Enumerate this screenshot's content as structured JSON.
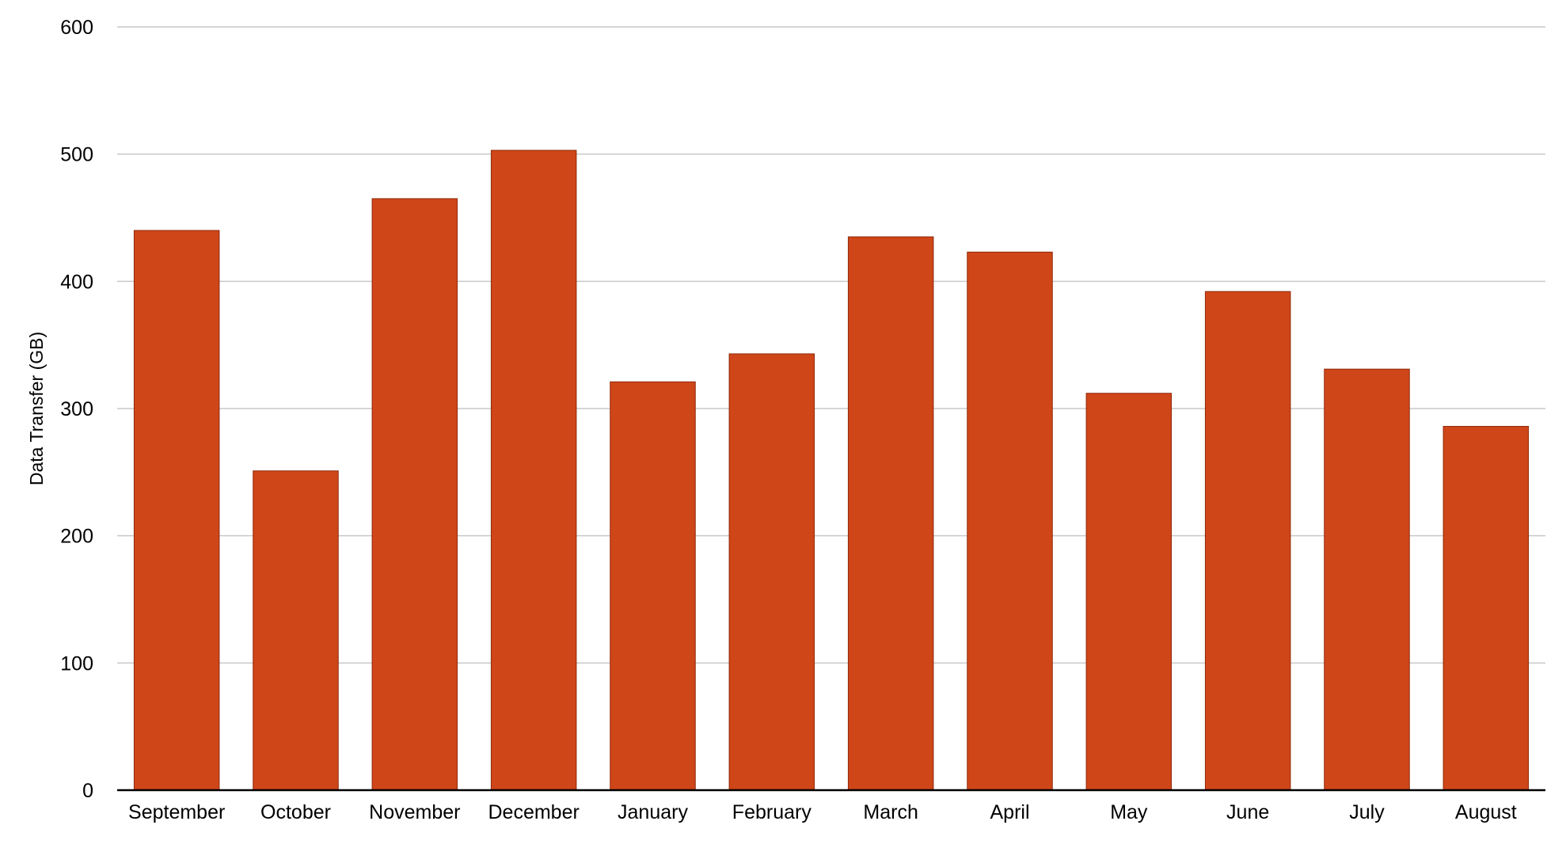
{
  "colors": {
    "bar_fill": "#cf4618",
    "gridline": "#c8c8c8",
    "axis": "#000000"
  },
  "chart_data": {
    "type": "bar",
    "title": "",
    "xlabel": "",
    "ylabel": "Data Transfer (GB)",
    "ylim": [
      0,
      600
    ],
    "yticks": [
      0,
      100,
      200,
      300,
      400,
      500,
      600
    ],
    "grid": true,
    "legend": "none",
    "categories": [
      "September",
      "October",
      "November",
      "December",
      "January",
      "February",
      "March",
      "April",
      "May",
      "June",
      "July",
      "August"
    ],
    "values": [
      440,
      251,
      465,
      503,
      321,
      343,
      435,
      423,
      312,
      392,
      331,
      286
    ]
  }
}
